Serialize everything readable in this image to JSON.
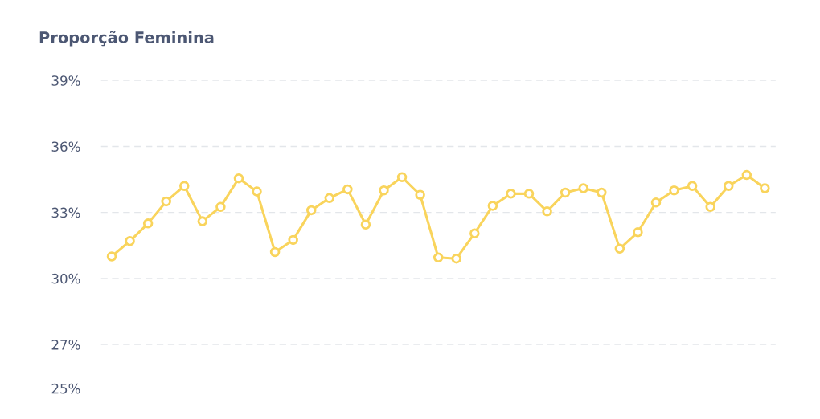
{
  "chart_data": {
    "type": "line",
    "title": "Proporção Feminina",
    "categories": [
      null,
      null,
      null,
      null,
      null,
      null,
      null,
      null,
      null,
      null,
      null,
      null,
      null,
      null,
      null,
      null,
      null,
      null,
      null,
      null,
      null,
      null,
      null,
      null,
      null,
      null,
      null,
      null,
      null,
      null,
      null,
      null,
      null,
      null,
      null,
      null,
      null
    ],
    "series": [
      {
        "color": "#f9d45c",
        "values": [
          31.0,
          31.7,
          32.5,
          33.5,
          34.2,
          32.6,
          33.25,
          34.55,
          33.95,
          31.2,
          31.75,
          33.1,
          33.65,
          34.05,
          32.45,
          34.0,
          34.6,
          33.8,
          30.95,
          30.9,
          32.05,
          33.3,
          33.85,
          33.85,
          33.05,
          33.9,
          34.1,
          33.9,
          31.35,
          32.1,
          33.45,
          34.0,
          34.2,
          33.25,
          34.2,
          34.7,
          34.1
        ]
      }
    ],
    "ylim": [
      25,
      39
    ],
    "yticks": [
      {
        "value": 25,
        "label": "25%"
      },
      {
        "value": 27,
        "label": "27%"
      },
      {
        "value": 30,
        "label": "30%"
      },
      {
        "value": 33,
        "label": "33%"
      },
      {
        "value": 36,
        "label": "36%"
      },
      {
        "value": 39,
        "label": "39%"
      }
    ],
    "grid": "y",
    "marker": "circle",
    "line_style": "solid",
    "tick_labels": "y"
  }
}
